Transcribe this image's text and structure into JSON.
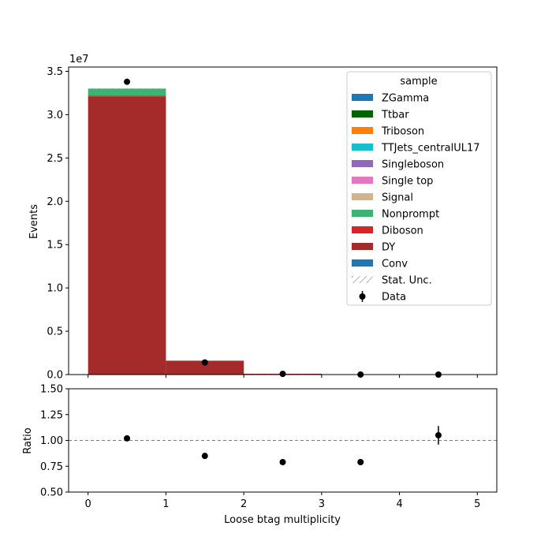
{
  "chart_data": [
    {
      "type": "bar",
      "stacked": true,
      "histogram": true,
      "bin_edges": [
        0,
        1,
        2,
        3,
        4,
        5
      ],
      "ylabel": "Events",
      "y_scale_exponent_label": "1e7",
      "xlim": [
        -0.25,
        5.25
      ],
      "ylim": [
        0,
        35500000
      ],
      "yticks": [
        0,
        5000000,
        10000000,
        15000000,
        20000000,
        25000000,
        30000000,
        35000000
      ],
      "ytick_labels": [
        "0.0",
        "0.5",
        "1.0",
        "1.5",
        "2.0",
        "2.5",
        "3.0",
        "3.5"
      ],
      "xticks": [
        0,
        1,
        2,
        3,
        4,
        5
      ],
      "grid": false,
      "legend": {
        "title": "sample",
        "placement": "top-right",
        "entries": [
          {
            "label": "ZGamma",
            "kind": "patch",
            "color": "#1f77b4"
          },
          {
            "label": "Ttbar",
            "kind": "patch",
            "color": "#006400"
          },
          {
            "label": "Triboson",
            "kind": "patch",
            "color": "#ff7f0e"
          },
          {
            "label": "TTJets_centralUL17",
            "kind": "patch",
            "color": "#17becf"
          },
          {
            "label": "Singleboson",
            "kind": "patch",
            "color": "#9467bd"
          },
          {
            "label": "Single top",
            "kind": "patch",
            "color": "#e377c2"
          },
          {
            "label": "Signal",
            "kind": "patch",
            "color": "#d2b48c"
          },
          {
            "label": "Nonprompt",
            "kind": "patch",
            "color": "#3cb371"
          },
          {
            "label": "Diboson",
            "kind": "patch",
            "color": "#d62728"
          },
          {
            "label": "DY",
            "kind": "patch",
            "color": "#a52a2a"
          },
          {
            "label": "Conv",
            "kind": "patch",
            "color": "#1f77b4"
          },
          {
            "label": "Stat. Unc.",
            "kind": "hatch",
            "color": "#888888"
          },
          {
            "label": "Data",
            "kind": "errorbar",
            "color": "#000000"
          }
        ]
      },
      "series": [
        {
          "name": "DY",
          "color": "#a52a2a",
          "values": [
            32100000,
            1550000,
            90000,
            4000,
            300
          ]
        },
        {
          "name": "Diboson",
          "color": "#d62728",
          "values": [
            80000,
            30000,
            5000,
            500,
            50
          ]
        },
        {
          "name": "Nonprompt",
          "color": "#3cb371",
          "values": [
            820000,
            40000,
            3000,
            300,
            30
          ]
        },
        {
          "name": "Singleboson",
          "color": "#9467bd",
          "values": [
            10000,
            20000,
            2000,
            200,
            20
          ]
        }
      ],
      "stat_unc_top": [
        33050000,
        1640000,
        100000,
        5000,
        400
      ],
      "data_points": {
        "x": [
          0.5,
          1.5,
          2.5,
          3.5,
          4.5
        ],
        "y": [
          33800000,
          1400000,
          79000,
          3900,
          420
        ]
      }
    },
    {
      "type": "scatter",
      "xlabel": "Loose btag multiplicity",
      "ylabel": "Ratio",
      "xlim": [
        -0.25,
        5.25
      ],
      "ylim": [
        0.5,
        1.5
      ],
      "yticks": [
        0.5,
        0.75,
        1.0,
        1.25,
        1.5
      ],
      "ytick_labels": [
        "0.50",
        "0.75",
        "1.00",
        "1.25",
        "1.50"
      ],
      "xticks": [
        0,
        1,
        2,
        3,
        4,
        5
      ],
      "xtick_labels": [
        "0",
        "1",
        "2",
        "3",
        "4",
        "5"
      ],
      "reference_line": 1.0,
      "x": [
        0.5,
        1.5,
        2.5,
        3.5,
        4.5
      ],
      "y": [
        1.02,
        0.85,
        0.79,
        0.79,
        1.05
      ],
      "yerr": [
        0.0,
        0.0,
        0.0,
        0.0,
        0.09
      ]
    }
  ]
}
